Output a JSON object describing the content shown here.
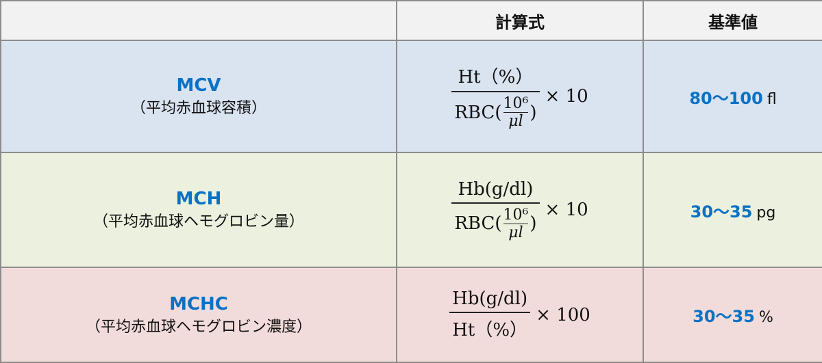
{
  "headers": [
    "",
    "計算式",
    "基準値"
  ],
  "rows": [
    {
      "abbr": "MCV",
      "full": "（平均赤血球容積）",
      "numerator": "Ht（%）",
      "denominator_prefix": "RBC(",
      "denominator_frac_num": "10⁶",
      "denominator_frac_den": "μl",
      "denominator_suffix": ")",
      "multiplier": "× 10",
      "range": "80～100",
      "unit": "fl",
      "bg": "#dae3f0"
    },
    {
      "abbr": "MCH",
      "full": "（平均赤血球ヘモグロビン量）",
      "numerator": "Hb(g/dl)",
      "denominator_prefix": "RBC(",
      "denominator_frac_num": "10⁶",
      "denominator_frac_den": "μl",
      "denominator_suffix": ")",
      "multiplier": "× 10",
      "range": "30～35",
      "unit": "pg",
      "bg": "#ebf1de"
    },
    {
      "abbr": "MCHC",
      "full": "（平均赤血球ヘモグロビン濃度）",
      "numerator": "Hb(g/dl)",
      "denominator": "Ht（%）",
      "multiplier": "× 100",
      "range": "30～35",
      "unit": "%",
      "bg": "#f2dcdb"
    }
  ],
  "colors": {
    "accent": "#0a72c4"
  }
}
